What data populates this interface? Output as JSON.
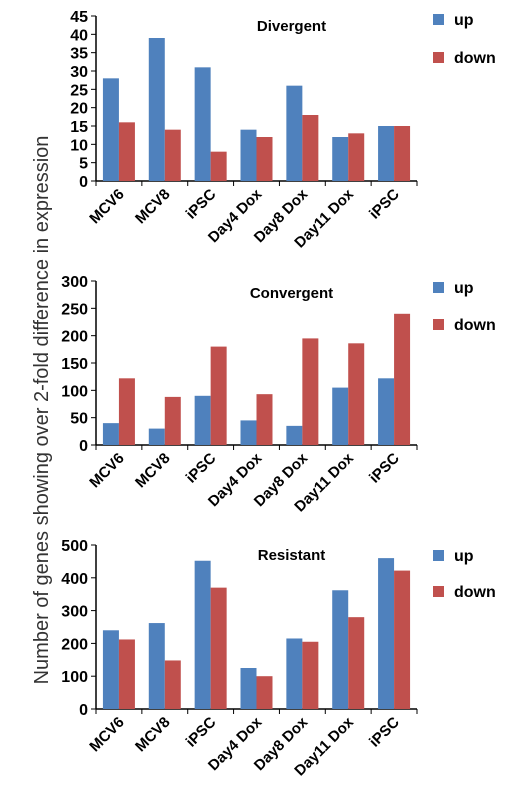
{
  "figure": {
    "ylabel": "Number of genes showing over 2-fold difference in expression"
  },
  "colors": {
    "up": "#4F81BD",
    "down": "#C0504D",
    "axis": "#000000"
  },
  "chart_data": [
    {
      "type": "bar",
      "title": "Divergent",
      "categories": [
        "MCV6",
        "MCV8",
        "iPSC",
        "Day4 Dox",
        "Day8 Dox",
        "Day11 Dox",
        "iPSC"
      ],
      "series": [
        {
          "name": "up",
          "values": [
            28,
            39,
            31,
            14,
            26,
            12,
            15
          ]
        },
        {
          "name": "down",
          "values": [
            16,
            14,
            8,
            12,
            18,
            13,
            15
          ]
        }
      ],
      "ylim": [
        0,
        45
      ],
      "yticks": [
        0,
        5,
        10,
        15,
        20,
        25,
        30,
        35,
        40,
        45
      ],
      "legend": "right",
      "grid": false
    },
    {
      "type": "bar",
      "title": "Convergent",
      "categories": [
        "MCV6",
        "MCV8",
        "iPSC",
        "Day4 Dox",
        "Day8 Dox",
        "Day11 Dox",
        "iPSC"
      ],
      "series": [
        {
          "name": "up",
          "values": [
            40,
            30,
            90,
            45,
            35,
            105,
            122
          ]
        },
        {
          "name": "down",
          "values": [
            122,
            88,
            180,
            93,
            195,
            186,
            240
          ]
        }
      ],
      "ylim": [
        0,
        300
      ],
      "yticks": [
        0,
        50,
        100,
        150,
        200,
        250,
        300
      ],
      "legend": "right",
      "grid": false
    },
    {
      "type": "bar",
      "title": "Resistant",
      "categories": [
        "MCV6",
        "MCV8",
        "iPSC",
        "Day4 Dox",
        "Day8 Dox",
        "Day11 Dox",
        "iPSC"
      ],
      "series": [
        {
          "name": "up",
          "values": [
            240,
            262,
            452,
            125,
            215,
            362,
            460
          ]
        },
        {
          "name": "down",
          "values": [
            212,
            148,
            370,
            100,
            205,
            280,
            422
          ]
        }
      ],
      "ylim": [
        0,
        500
      ],
      "yticks": [
        0,
        100,
        200,
        300,
        400,
        500
      ],
      "legend": "right",
      "grid": false
    }
  ]
}
